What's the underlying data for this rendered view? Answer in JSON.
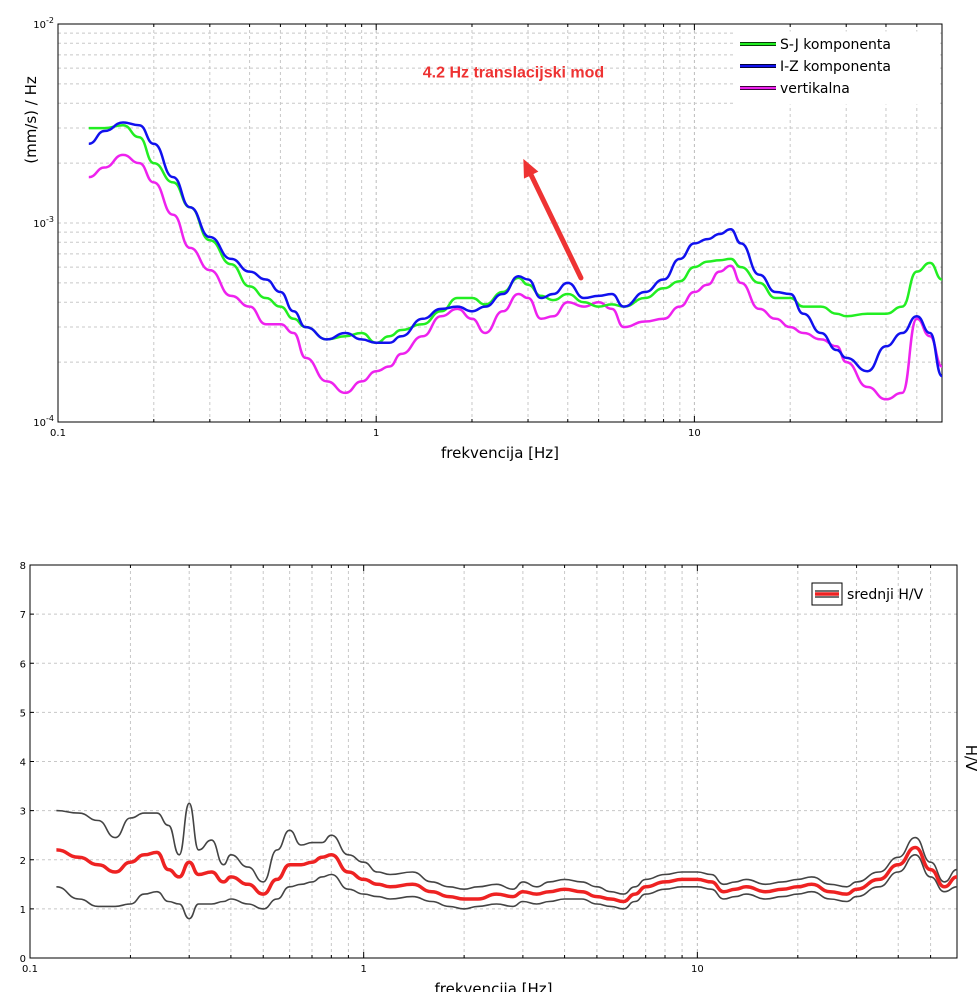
{
  "chart_data": [
    {
      "type": "line",
      "xscale": "log",
      "yscale": "log",
      "xlim": [
        0.1,
        60
      ],
      "ylim": [
        0.0001,
        0.01
      ],
      "xlabel": "frekvencija [Hz]",
      "ylabel": "(mm/s)  / Hz",
      "grid": true,
      "legend_position": "top-right",
      "x_ticks": [
        {
          "value": 0.1,
          "label": "0.1"
        },
        {
          "value": 1,
          "label": "1"
        },
        {
          "value": 10,
          "label": "10"
        }
      ],
      "y_ticks": [
        {
          "value": 0.0001,
          "base": "10",
          "exp": "-4"
        },
        {
          "value": 0.001,
          "base": "10",
          "exp": "-3"
        },
        {
          "value": 0.01,
          "base": "10",
          "exp": "-2"
        }
      ],
      "annotation": {
        "text": "4.2 Hz  translacijski mod",
        "color": "#ee3333",
        "from": [
          4.4,
          0.00053
        ],
        "to": [
          2.9,
          0.0021
        ],
        "text_at": [
          2.7,
          0.0054
        ]
      },
      "series": [
        {
          "name": "S-J komponenta",
          "color": "#22ee22",
          "x": [
            0.125,
            0.14,
            0.16,
            0.18,
            0.2,
            0.23,
            0.26,
            0.3,
            0.35,
            0.4,
            0.45,
            0.5,
            0.55,
            0.6,
            0.7,
            0.8,
            0.9,
            1,
            1.1,
            1.2,
            1.4,
            1.6,
            1.8,
            2,
            2.2,
            2.5,
            2.8,
            3,
            3.3,
            3.6,
            4,
            4.5,
            5,
            5.5,
            6,
            7,
            8,
            9,
            10,
            11,
            12,
            13,
            14,
            16,
            18,
            20,
            22,
            25,
            28,
            30,
            35,
            40,
            45,
            50,
            55,
            60
          ],
          "y": [
            0.003,
            0.003,
            0.0031,
            0.0027,
            0.002,
            0.0016,
            0.0012,
            0.00082,
            0.00062,
            0.00048,
            0.00042,
            0.00038,
            0.00033,
            0.0003,
            0.00026,
            0.00027,
            0.00028,
            0.00025,
            0.00027,
            0.00029,
            0.00031,
            0.00036,
            0.00042,
            0.00042,
            0.00039,
            0.00045,
            0.00053,
            0.00049,
            0.00043,
            0.00041,
            0.00044,
            0.0004,
            0.00038,
            0.00039,
            0.00038,
            0.00042,
            0.00047,
            0.00051,
            0.0006,
            0.00064,
            0.00065,
            0.00066,
            0.0006,
            0.0005,
            0.00042,
            0.00042,
            0.00038,
            0.00038,
            0.00035,
            0.00034,
            0.00035,
            0.00035,
            0.00038,
            0.00057,
            0.00063,
            0.00052
          ]
        },
        {
          "name": "I-Z komponenta",
          "color": "#1111ee",
          "x": [
            0.125,
            0.14,
            0.16,
            0.18,
            0.2,
            0.23,
            0.26,
            0.3,
            0.35,
            0.4,
            0.45,
            0.5,
            0.55,
            0.6,
            0.7,
            0.8,
            0.9,
            1,
            1.1,
            1.2,
            1.4,
            1.6,
            1.8,
            2,
            2.2,
            2.5,
            2.8,
            3,
            3.3,
            3.6,
            4,
            4.5,
            5,
            5.5,
            6,
            7,
            8,
            9,
            10,
            11,
            12,
            13,
            14,
            16,
            18,
            20,
            22,
            25,
            28,
            30,
            35,
            40,
            45,
            50,
            55,
            60
          ],
          "y": [
            0.0025,
            0.0029,
            0.0032,
            0.0031,
            0.0025,
            0.0017,
            0.0012,
            0.00085,
            0.00066,
            0.00057,
            0.00052,
            0.00045,
            0.00036,
            0.0003,
            0.00026,
            0.00028,
            0.00026,
            0.00025,
            0.00025,
            0.00027,
            0.00033,
            0.00037,
            0.00038,
            0.00036,
            0.00038,
            0.00044,
            0.00054,
            0.00052,
            0.00042,
            0.00044,
            0.0005,
            0.00042,
            0.00043,
            0.00044,
            0.00038,
            0.00045,
            0.00052,
            0.00066,
            0.00079,
            0.00083,
            0.00088,
            0.00093,
            0.00079,
            0.00055,
            0.00045,
            0.00044,
            0.00035,
            0.00028,
            0.00023,
            0.00021,
            0.00018,
            0.00024,
            0.00028,
            0.00034,
            0.00028,
            0.00017
          ]
        },
        {
          "name": "vertikalna",
          "color": "#ee22ee",
          "x": [
            0.125,
            0.14,
            0.16,
            0.18,
            0.2,
            0.23,
            0.26,
            0.3,
            0.35,
            0.4,
            0.45,
            0.5,
            0.55,
            0.6,
            0.7,
            0.8,
            0.9,
            1,
            1.1,
            1.2,
            1.4,
            1.6,
            1.8,
            2,
            2.2,
            2.5,
            2.8,
            3,
            3.3,
            3.6,
            4,
            4.5,
            5,
            5.5,
            6,
            7,
            8,
            9,
            10,
            11,
            12,
            13,
            14,
            16,
            18,
            20,
            22,
            25,
            28,
            30,
            35,
            40,
            45,
            50,
            55,
            60
          ],
          "y": [
            0.0017,
            0.0019,
            0.0022,
            0.002,
            0.0016,
            0.0011,
            0.00075,
            0.00058,
            0.00043,
            0.00038,
            0.00031,
            0.00031,
            0.00028,
            0.00021,
            0.00016,
            0.00014,
            0.00016,
            0.00018,
            0.00019,
            0.00022,
            0.00027,
            0.00034,
            0.00037,
            0.00033,
            0.00028,
            0.00036,
            0.00044,
            0.00042,
            0.00033,
            0.00034,
            0.0004,
            0.00038,
            0.0004,
            0.00037,
            0.0003,
            0.00032,
            0.00033,
            0.00038,
            0.00045,
            0.00049,
            0.00057,
            0.00061,
            0.0005,
            0.00037,
            0.00033,
            0.0003,
            0.00028,
            0.00026,
            0.00024,
            0.0002,
            0.00015,
            0.00013,
            0.00014,
            0.00033,
            0.00027,
            0.00019
          ]
        }
      ]
    },
    {
      "type": "line",
      "xscale": "log",
      "xlim": [
        0.1,
        60
      ],
      "ylim": [
        0,
        8
      ],
      "xlabel": "frekvencija [Hz]",
      "ylabel": "H/V",
      "grid": true,
      "legend_position": "top-right",
      "x_ticks": [
        {
          "value": 0.1,
          "label": "0.1"
        },
        {
          "value": 1,
          "label": "1"
        },
        {
          "value": 10,
          "label": "10"
        }
      ],
      "y_ticks": [
        {
          "value": 0,
          "label": "0"
        },
        {
          "value": 1,
          "label": "1"
        },
        {
          "value": 2,
          "label": "2"
        },
        {
          "value": 3,
          "label": "3"
        },
        {
          "value": 4,
          "label": "4"
        },
        {
          "value": 5,
          "label": "5"
        },
        {
          "value": 6,
          "label": "6"
        },
        {
          "value": 7,
          "label": "7"
        },
        {
          "value": 8,
          "label": "8"
        }
      ],
      "series": [
        {
          "name": "srednji H/V",
          "color": "#ee2222",
          "x": [
            0.12,
            0.14,
            0.16,
            0.18,
            0.2,
            0.22,
            0.24,
            0.26,
            0.28,
            0.3,
            0.32,
            0.35,
            0.38,
            0.4,
            0.45,
            0.5,
            0.55,
            0.6,
            0.65,
            0.7,
            0.75,
            0.8,
            0.9,
            1,
            1.1,
            1.2,
            1.4,
            1.6,
            1.8,
            2,
            2.2,
            2.5,
            2.8,
            3,
            3.3,
            3.6,
            4,
            4.5,
            5,
            5.5,
            6,
            6.5,
            7,
            8,
            9,
            10,
            11,
            12,
            13,
            14,
            16,
            18,
            20,
            22,
            25,
            28,
            30,
            35,
            40,
            45,
            50,
            55,
            60
          ],
          "y": [
            2.2,
            2.05,
            1.9,
            1.75,
            1.95,
            2.1,
            2.15,
            1.8,
            1.65,
            1.95,
            1.7,
            1.75,
            1.55,
            1.65,
            1.5,
            1.3,
            1.6,
            1.9,
            1.9,
            1.95,
            2.05,
            2.1,
            1.75,
            1.6,
            1.5,
            1.45,
            1.5,
            1.35,
            1.25,
            1.2,
            1.2,
            1.3,
            1.25,
            1.35,
            1.3,
            1.35,
            1.4,
            1.35,
            1.25,
            1.2,
            1.15,
            1.3,
            1.45,
            1.55,
            1.6,
            1.6,
            1.55,
            1.35,
            1.4,
            1.45,
            1.35,
            1.4,
            1.45,
            1.5,
            1.35,
            1.3,
            1.4,
            1.6,
            1.9,
            2.25,
            1.8,
            1.45,
            1.65
          ]
        },
        {
          "name": "",
          "color": "#444444",
          "x": [
            0.12,
            0.14,
            0.16,
            0.18,
            0.2,
            0.22,
            0.24,
            0.26,
            0.28,
            0.3,
            0.32,
            0.35,
            0.38,
            0.4,
            0.45,
            0.5,
            0.55,
            0.6,
            0.65,
            0.7,
            0.75,
            0.8,
            0.9,
            1,
            1.1,
            1.2,
            1.4,
            1.6,
            1.8,
            2,
            2.2,
            2.5,
            2.8,
            3,
            3.3,
            3.6,
            4,
            4.5,
            5,
            5.5,
            6,
            6.5,
            7,
            8,
            9,
            10,
            11,
            12,
            13,
            14,
            16,
            18,
            20,
            22,
            25,
            28,
            30,
            35,
            40,
            45,
            50,
            55,
            60
          ],
          "y": [
            3.0,
            2.95,
            2.8,
            2.45,
            2.85,
            2.95,
            2.95,
            2.7,
            2.1,
            3.15,
            2.2,
            2.4,
            1.9,
            2.1,
            1.85,
            1.55,
            2.2,
            2.6,
            2.3,
            2.35,
            2.35,
            2.5,
            2.1,
            1.95,
            1.75,
            1.7,
            1.75,
            1.55,
            1.45,
            1.4,
            1.45,
            1.5,
            1.4,
            1.55,
            1.45,
            1.55,
            1.6,
            1.55,
            1.45,
            1.35,
            1.3,
            1.45,
            1.6,
            1.7,
            1.75,
            1.75,
            1.7,
            1.5,
            1.55,
            1.6,
            1.5,
            1.55,
            1.6,
            1.65,
            1.5,
            1.45,
            1.55,
            1.75,
            2.05,
            2.45,
            1.95,
            1.55,
            1.8
          ]
        },
        {
          "name": "",
          "color": "#444444",
          "x": [
            0.12,
            0.14,
            0.16,
            0.18,
            0.2,
            0.22,
            0.24,
            0.26,
            0.28,
            0.3,
            0.32,
            0.35,
            0.38,
            0.4,
            0.45,
            0.5,
            0.55,
            0.6,
            0.65,
            0.7,
            0.75,
            0.8,
            0.9,
            1,
            1.1,
            1.2,
            1.4,
            1.6,
            1.8,
            2,
            2.2,
            2.5,
            2.8,
            3,
            3.3,
            3.6,
            4,
            4.5,
            5,
            5.5,
            6,
            6.5,
            7,
            8,
            9,
            10,
            11,
            12,
            13,
            14,
            16,
            18,
            20,
            22,
            25,
            28,
            30,
            35,
            40,
            45,
            50,
            55,
            60
          ],
          "y": [
            1.45,
            1.2,
            1.05,
            1.05,
            1.1,
            1.3,
            1.35,
            1.15,
            1.1,
            0.8,
            1.1,
            1.1,
            1.15,
            1.2,
            1.1,
            1.0,
            1.2,
            1.45,
            1.5,
            1.55,
            1.65,
            1.7,
            1.4,
            1.3,
            1.25,
            1.2,
            1.25,
            1.15,
            1.05,
            1.0,
            1.05,
            1.1,
            1.05,
            1.15,
            1.1,
            1.15,
            1.2,
            1.2,
            1.1,
            1.05,
            1.0,
            1.15,
            1.3,
            1.4,
            1.45,
            1.45,
            1.4,
            1.2,
            1.25,
            1.3,
            1.2,
            1.25,
            1.3,
            1.35,
            1.2,
            1.15,
            1.25,
            1.45,
            1.75,
            2.1,
            1.65,
            1.35,
            1.45
          ]
        }
      ]
    }
  ]
}
